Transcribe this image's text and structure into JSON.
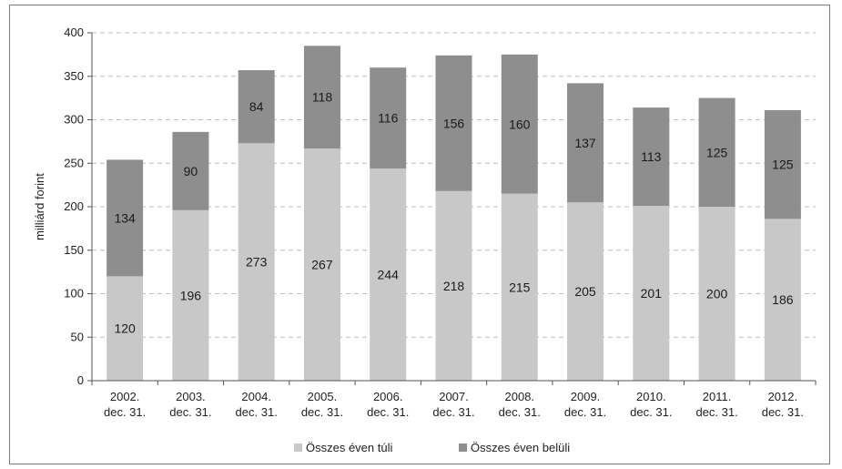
{
  "chart_data": {
    "type": "bar",
    "stacked": true,
    "categories": [
      [
        "2002.",
        "dec. 31."
      ],
      [
        "2003.",
        "dec. 31."
      ],
      [
        "2004.",
        "dec. 31."
      ],
      [
        "2005.",
        "dec. 31."
      ],
      [
        "2006.",
        "dec. 31."
      ],
      [
        "2007.",
        "dec. 31."
      ],
      [
        "2008.",
        "dec. 31."
      ],
      [
        "2009.",
        "dec. 31."
      ],
      [
        "2010.",
        "dec. 31."
      ],
      [
        "2011.",
        "dec. 31."
      ],
      [
        "2012.",
        "dec. 31."
      ]
    ],
    "series": [
      {
        "name": "Összes éven túli",
        "color": "#c8c8c8",
        "values": [
          120,
          196,
          273,
          267,
          244,
          218,
          215,
          205,
          201,
          200,
          186
        ]
      },
      {
        "name": "Összes éven belüli",
        "color": "#8e8e8e",
        "values": [
          134,
          90,
          84,
          118,
          116,
          156,
          160,
          137,
          113,
          125,
          125
        ]
      }
    ],
    "ylabel": "milliárd forint",
    "ylim": [
      0,
      400
    ],
    "yticks": [
      0,
      50,
      100,
      150,
      200,
      250,
      300,
      350,
      400
    ],
    "grid": true,
    "grid_style": "dashed",
    "legend_position": "bottom-center"
  }
}
